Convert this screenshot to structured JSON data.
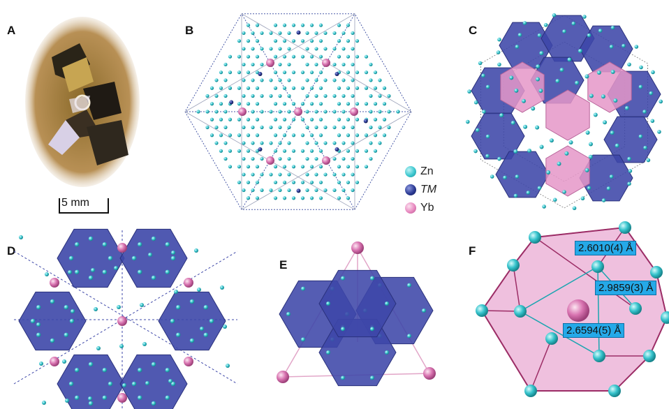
{
  "panels": [
    {
      "label": "A"
    },
    {
      "label": "B"
    },
    {
      "label": "C"
    },
    {
      "label": "D"
    },
    {
      "label": "E"
    },
    {
      "label": "F"
    }
  ],
  "scale_bar": "5 mm",
  "legend": [
    {
      "label": "Zn",
      "color": "#3cc7cf"
    },
    {
      "label": "TM",
      "color": "#2b3a94"
    },
    {
      "label": "Yb",
      "color": "#e889c0"
    }
  ],
  "distances": [
    "2.6010(4) Å",
    "2.9859(3) Å",
    "2.6594(5) Å"
  ],
  "colors": {
    "zn": "#36c3cc",
    "tm_poly": "#3d47a8",
    "yb": "#d873b0",
    "yb_poly": "#e596c8"
  }
}
